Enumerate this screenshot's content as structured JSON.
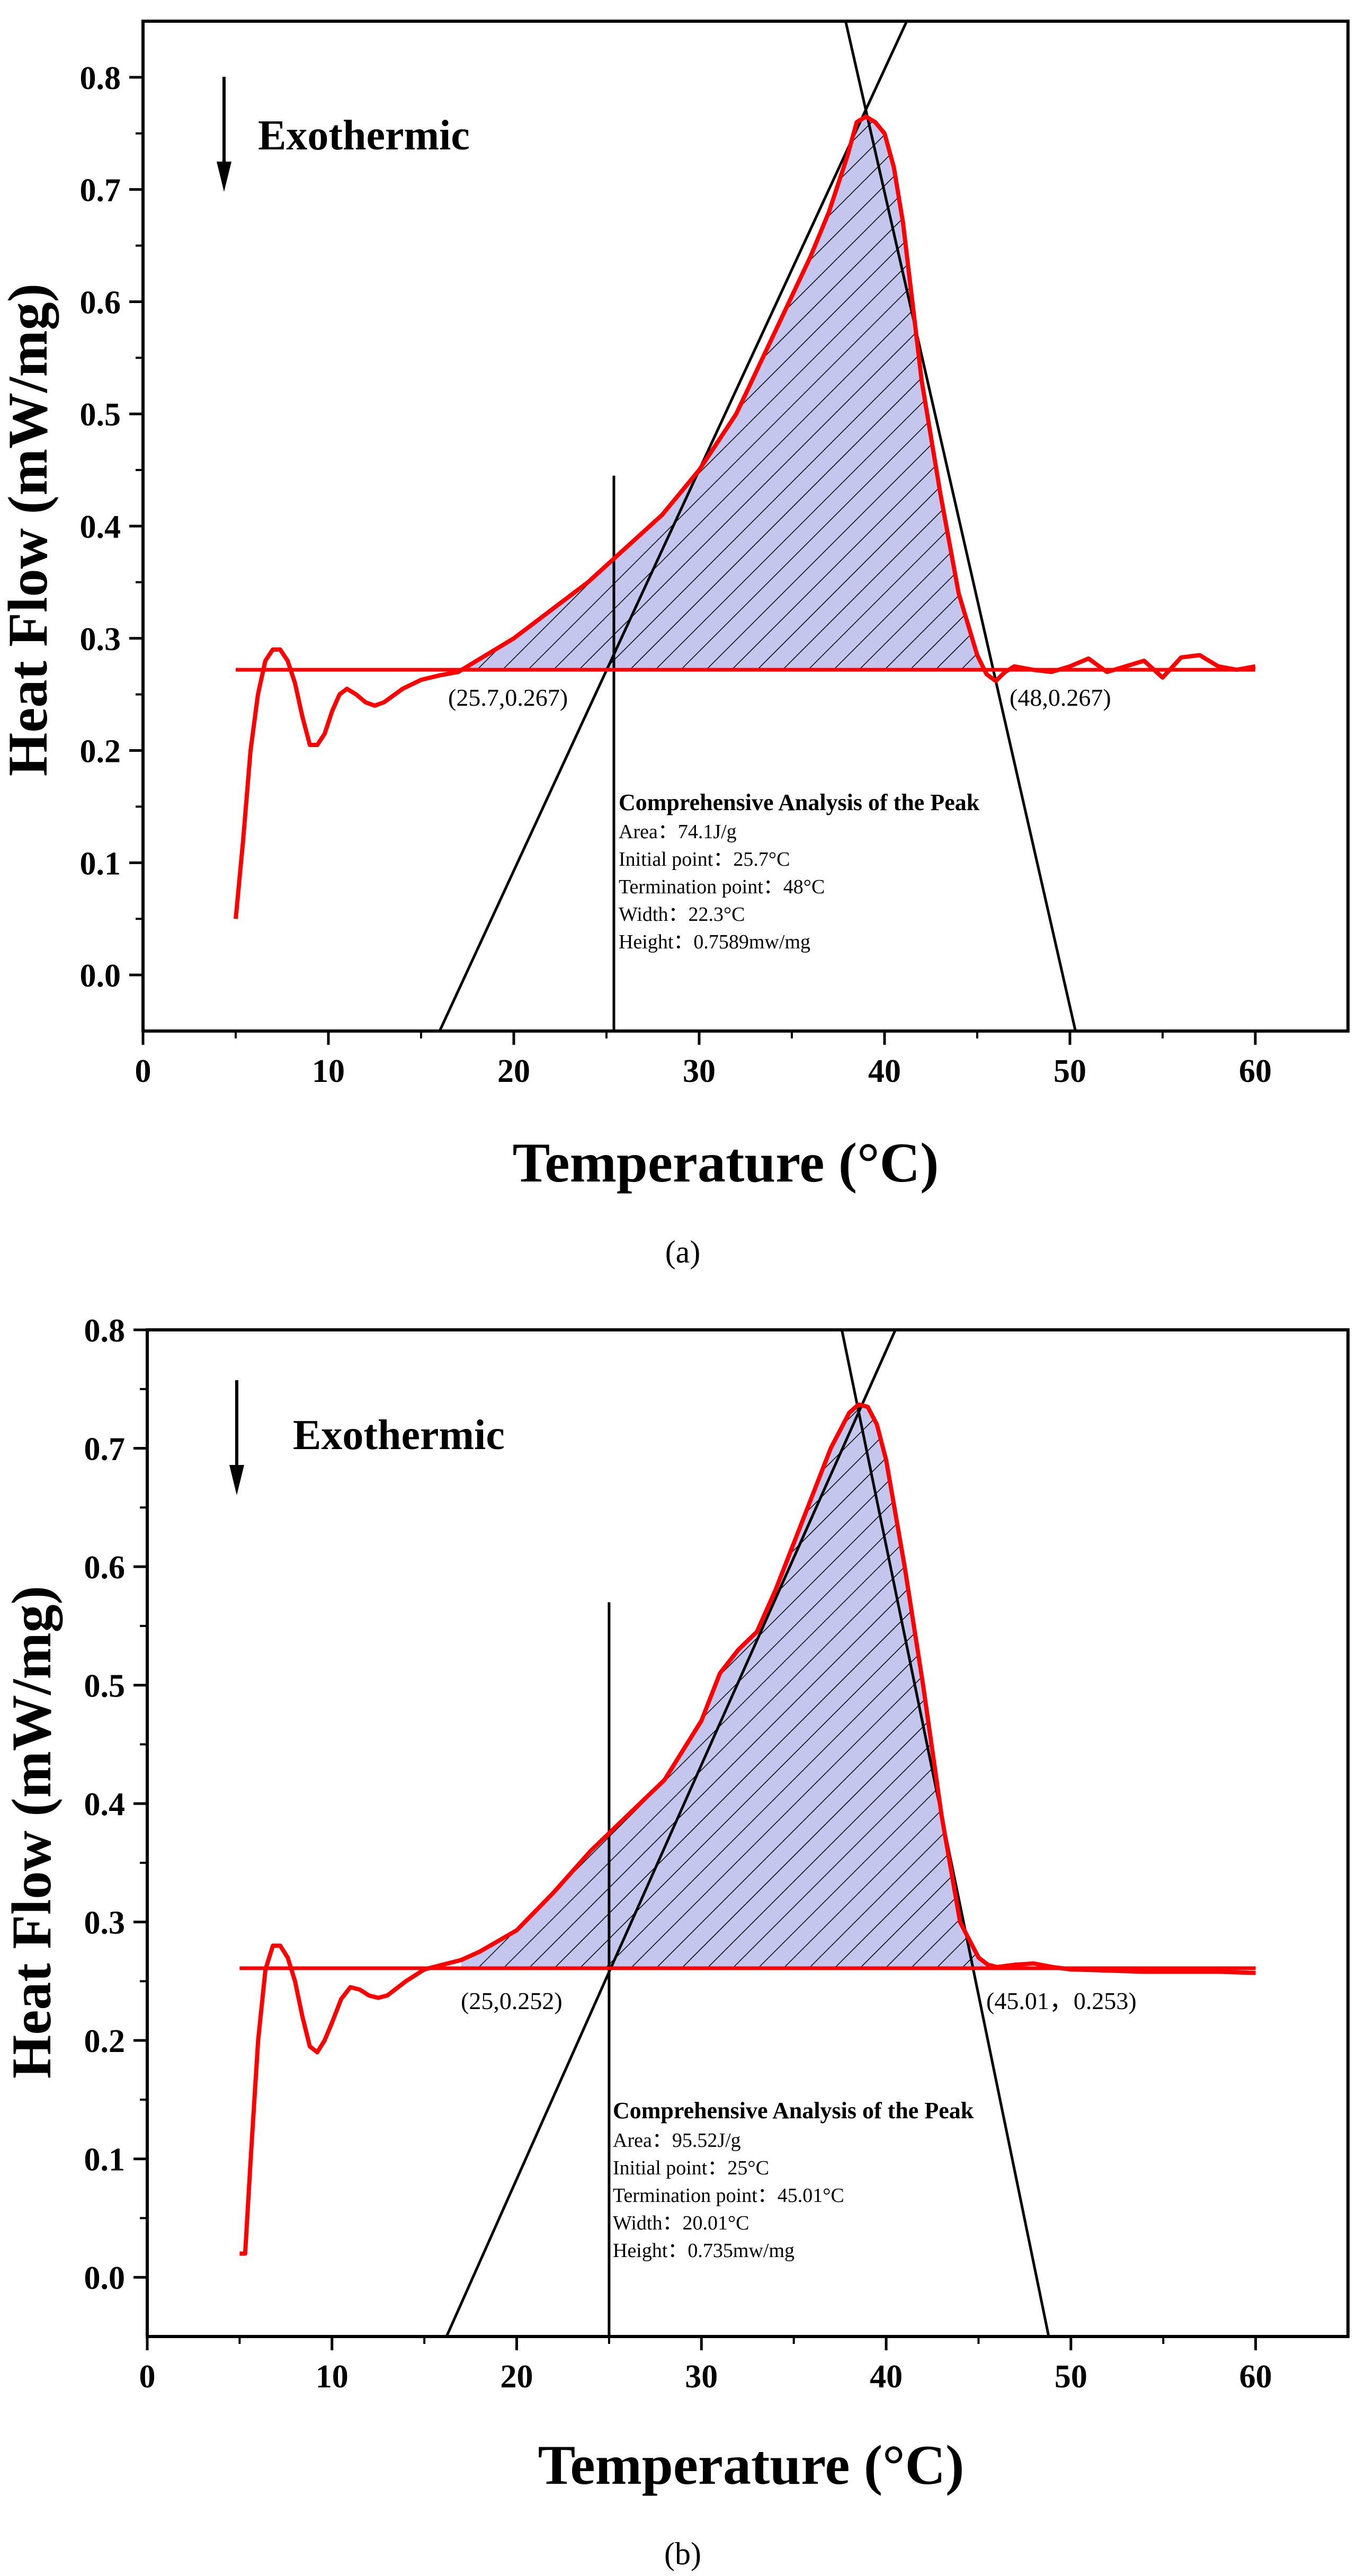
{
  "figure": {
    "panels": [
      "a",
      "b"
    ],
    "caption_a": "(a)",
    "caption_b": "(b)"
  },
  "chart_data": [
    {
      "type": "line",
      "panel": "a",
      "xlabel": "Temperature (°C)",
      "ylabel": "Heat Flow (mW/mg)",
      "xlim": [
        0,
        65
      ],
      "ylim": [
        -0.05,
        0.85
      ],
      "x_ticks": [
        0,
        10,
        20,
        30,
        40,
        50,
        60
      ],
      "y_ticks": [
        0.0,
        0.1,
        0.2,
        0.3,
        0.4,
        0.5,
        0.6,
        0.7,
        0.8
      ],
      "x_tick_labels": [
        "0",
        "10",
        "20",
        "30",
        "40",
        "50",
        "60"
      ],
      "y_tick_labels": [
        "0.0",
        "0.1",
        "0.2",
        "0.3",
        "0.4",
        "0.5",
        "0.6",
        "0.7",
        "0.8"
      ],
      "exothermic_label": "Exothermic",
      "colors": {
        "curve": "#ff0000",
        "fill": "#c4c6ee",
        "hatch": "#000000",
        "line": "#000000"
      },
      "series": [
        {
          "name": "heat flow",
          "x": [
            5.0,
            5.4,
            5.8,
            6.2,
            6.6,
            7.0,
            7.4,
            7.8,
            8.2,
            8.6,
            9.0,
            9.4,
            9.8,
            10.2,
            10.6,
            11.0,
            11.5,
            12.0,
            12.5,
            13.0,
            14.0,
            15.0,
            16.0,
            17.0,
            18.0,
            20.0,
            22.0,
            24.0,
            26.0,
            28.0,
            30.0,
            32.0,
            34.0,
            36.0,
            37.0,
            38.0,
            38.5,
            39.0,
            39.5,
            40.0,
            40.5,
            41.0,
            41.5,
            42.0,
            43.0,
            44.0,
            45.0,
            45.5,
            46.0,
            46.5,
            47.0,
            48.0,
            49.0,
            50.0,
            51.0,
            52.0,
            53.0,
            54.0,
            55.0,
            56.0,
            57.0,
            58.0,
            59.0,
            60.0
          ],
          "y": [
            0.05,
            0.12,
            0.2,
            0.25,
            0.28,
            0.29,
            0.29,
            0.28,
            0.26,
            0.23,
            0.205,
            0.205,
            0.215,
            0.235,
            0.25,
            0.255,
            0.25,
            0.243,
            0.24,
            0.243,
            0.255,
            0.263,
            0.267,
            0.27,
            0.28,
            0.3,
            0.325,
            0.35,
            0.38,
            0.41,
            0.45,
            0.5,
            0.57,
            0.64,
            0.68,
            0.73,
            0.76,
            0.765,
            0.76,
            0.75,
            0.72,
            0.67,
            0.6,
            0.53,
            0.43,
            0.34,
            0.285,
            0.268,
            0.262,
            0.27,
            0.275,
            0.272,
            0.27,
            0.275,
            0.282,
            0.27,
            0.275,
            0.28,
            0.265,
            0.283,
            0.285,
            0.275,
            0.272,
            0.275
          ]
        }
      ],
      "baseline": {
        "x": [
          5.0,
          60.0
        ],
        "y": [
          0.272,
          0.272
        ]
      },
      "tangent_left": {
        "x": [
          16.0,
          41.2
        ],
        "y": [
          -0.05,
          0.85
        ]
      },
      "tangent_right": {
        "x": [
          37.9,
          50.3
        ],
        "y": [
          0.85,
          -0.05
        ]
      },
      "onset_line": {
        "x": 25.4,
        "y": [
          -0.05,
          0.445
        ]
      },
      "shaded_region": {
        "x_start": 17.0,
        "x_end": 45.8
      },
      "point_labels": [
        {
          "text": "(25.7,0.267)",
          "x": 25.7,
          "y": 0.267
        },
        {
          "text": "(48,0.267)",
          "x": 48.0,
          "y": 0.267
        }
      ],
      "annotation": {
        "title": "Comprehensive Analysis of the Peak",
        "lines": [
          "Area：74.1J/g",
          "Initial point：25.7°C",
          "Termination point：48°C",
          "Width：22.3°C",
          "Height：0.7589mw/mg"
        ]
      }
    },
    {
      "type": "line",
      "panel": "b",
      "xlabel": "Temperature (°C)",
      "ylabel": "Heat Flow (mW/mg)",
      "xlim": [
        0,
        65
      ],
      "ylim": [
        -0.05,
        0.8
      ],
      "x_ticks": [
        0,
        10,
        20,
        30,
        40,
        50,
        60
      ],
      "y_ticks": [
        0.0,
        0.1,
        0.2,
        0.3,
        0.4,
        0.5,
        0.6,
        0.7,
        0.8
      ],
      "x_tick_labels": [
        "0",
        "10",
        "20",
        "30",
        "40",
        "50",
        "60"
      ],
      "y_tick_labels": [
        "0.0",
        "0.1",
        "0.2",
        "0.3",
        "0.4",
        "0.5",
        "0.6",
        "0.7",
        "0.8"
      ],
      "exothermic_label": "Exothermic",
      "colors": {
        "curve": "#ff0000",
        "fill": "#c4c6ee",
        "hatch": "#000000",
        "line": "#000000"
      },
      "series": [
        {
          "name": "heat flow",
          "x": [
            5.0,
            5.3,
            5.6,
            6.0,
            6.4,
            6.8,
            7.2,
            7.6,
            8.0,
            8.4,
            8.8,
            9.2,
            9.6,
            10.0,
            10.5,
            11.0,
            11.5,
            12.0,
            12.5,
            13.0,
            14.0,
            15.0,
            16.0,
            17.0,
            18.0,
            20.0,
            22.0,
            24.0,
            26.0,
            28.0,
            30.0,
            31.0,
            32.0,
            33.0,
            34.0,
            35.0,
            36.0,
            37.0,
            38.0,
            38.5,
            39.0,
            39.5,
            40.0,
            41.0,
            42.0,
            43.0,
            44.0,
            45.0,
            45.5,
            46.0,
            47.0,
            48.0,
            49.0,
            50.0,
            52.0,
            54.0,
            56.0,
            58.0,
            60.0
          ],
          "y": [
            0.02,
            0.02,
            0.1,
            0.2,
            0.26,
            0.28,
            0.28,
            0.27,
            0.25,
            0.22,
            0.195,
            0.19,
            0.2,
            0.215,
            0.235,
            0.245,
            0.243,
            0.238,
            0.236,
            0.238,
            0.25,
            0.26,
            0.264,
            0.268,
            0.275,
            0.293,
            0.325,
            0.36,
            0.39,
            0.42,
            0.47,
            0.51,
            0.53,
            0.545,
            0.58,
            0.62,
            0.66,
            0.7,
            0.73,
            0.737,
            0.735,
            0.72,
            0.69,
            0.6,
            0.5,
            0.39,
            0.3,
            0.27,
            0.264,
            0.262,
            0.264,
            0.265,
            0.262,
            0.26,
            0.259,
            0.258,
            0.258,
            0.258,
            0.257
          ]
        }
      ],
      "baseline": {
        "x": [
          5.0,
          60.0
        ],
        "y": [
          0.261,
          0.261
        ]
      },
      "tangent_left": {
        "x": [
          16.2,
          40.5
        ],
        "y": [
          -0.05,
          0.8
        ]
      },
      "tangent_right": {
        "x": [
          37.6,
          48.8
        ],
        "y": [
          0.8,
          -0.05
        ]
      },
      "onset_line": {
        "x": 25.0,
        "y": [
          -0.05,
          0.57
        ]
      },
      "shaded_region": {
        "x_start": 17.0,
        "x_end": 45.5
      },
      "point_labels": [
        {
          "text": "(25,0.252)",
          "x": 25.0,
          "y": 0.252
        },
        {
          "text": "(45.01，0.253)",
          "x": 45.01,
          "y": 0.253
        }
      ],
      "annotation": {
        "title": "Comprehensive Analysis of the Peak",
        "lines": [
          "Area：95.52J/g",
          "Initial point：25°C",
          "Termination point：45.01°C",
          "Width：20.01°C",
          "Height：0.735mw/mg"
        ]
      }
    }
  ]
}
